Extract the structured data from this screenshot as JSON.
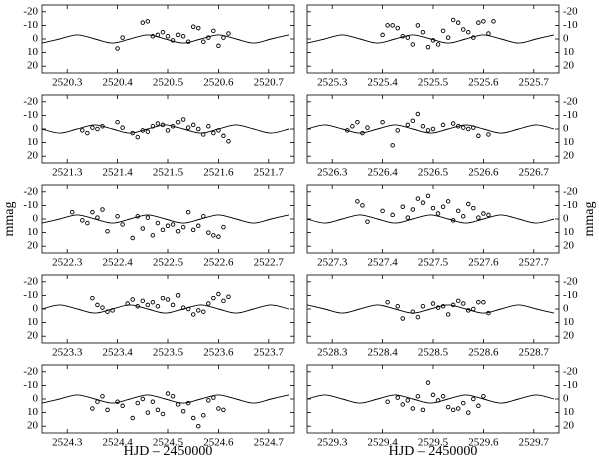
{
  "chart_data": [
    {
      "type": "scatter",
      "xlim": [
        2520.25,
        2520.75
      ],
      "xticks": [
        2520.3,
        2520.4,
        2520.5,
        2520.6,
        2520.7
      ],
      "ylim": [
        25,
        -25
      ],
      "yticks": [
        -20,
        -10,
        0,
        10,
        20
      ],
      "yaxis_side": "left",
      "x": [
        2520.4,
        2520.41,
        2520.45,
        2520.46,
        2520.47,
        2520.48,
        2520.49,
        2520.5,
        2520.51,
        2520.52,
        2520.53,
        2520.54,
        2520.55,
        2520.56,
        2520.57,
        2520.58,
        2520.59,
        2520.6,
        2520.61,
        2520.62
      ],
      "values": [
        7,
        -1,
        -12,
        -13,
        -2,
        -3,
        -5,
        -2,
        1,
        -3,
        -2,
        2,
        -9,
        -8,
        2,
        -1,
        -6,
        5,
        -1,
        -4
      ],
      "curve": {
        "x": [
          2520.25,
          2520.285,
          2520.32,
          2520.355,
          2520.39,
          2520.425,
          2520.46,
          2520.495,
          2520.53,
          2520.565,
          2520.6,
          2520.635,
          2520.67,
          2520.705,
          2520.74
        ],
        "values": [
          3,
          0,
          -3,
          0,
          3,
          0,
          -3,
          0,
          3,
          0,
          -3,
          0,
          3,
          0,
          -3
        ]
      }
    },
    {
      "type": "scatter",
      "xlim": [
        2521.25,
        2521.75
      ],
      "xticks": [
        2521.3,
        2521.4,
        2521.5,
        2521.6,
        2521.7
      ],
      "ylim": [
        25,
        -25
      ],
      "yticks": [
        -20,
        -10,
        0,
        10,
        20
      ],
      "yaxis_side": "left",
      "x": [
        2521.33,
        2521.34,
        2521.35,
        2521.36,
        2521.37,
        2521.4,
        2521.41,
        2521.43,
        2521.44,
        2521.45,
        2521.46,
        2521.47,
        2521.48,
        2521.49,
        2521.5,
        2521.51,
        2521.52,
        2521.53,
        2521.54,
        2521.55,
        2521.56,
        2521.57,
        2521.58,
        2521.59,
        2521.6,
        2521.61,
        2521.62
      ],
      "values": [
        1,
        3,
        -1,
        0,
        -2,
        -5,
        -1,
        3,
        6,
        1,
        2,
        -2,
        -4,
        -3,
        1,
        -2,
        -5,
        -7,
        -1,
        -3,
        0,
        4,
        -2,
        3,
        1,
        5,
        9
      ],
      "curve": {
        "x": [
          2521.25,
          2521.285,
          2521.32,
          2521.355,
          2521.39,
          2521.425,
          2521.46,
          2521.495,
          2521.53,
          2521.565,
          2521.6,
          2521.635,
          2521.67,
          2521.705,
          2521.74
        ],
        "values": [
          0,
          3,
          0,
          -3,
          0,
          3,
          0,
          -3,
          0,
          3,
          0,
          -3,
          0,
          3,
          0
        ]
      }
    },
    {
      "type": "scatter",
      "xlim": [
        2522.25,
        2522.75
      ],
      "xticks": [
        2522.3,
        2522.4,
        2522.5,
        2522.6,
        2522.7
      ],
      "ylim": [
        25,
        -25
      ],
      "yticks": [
        -20,
        -10,
        0,
        10,
        20
      ],
      "yaxis_side": "left",
      "ylabel": "mmag",
      "x": [
        2522.31,
        2522.33,
        2522.34,
        2522.35,
        2522.36,
        2522.37,
        2522.38,
        2522.4,
        2522.41,
        2522.43,
        2522.44,
        2522.45,
        2522.46,
        2522.47,
        2522.48,
        2522.49,
        2522.5,
        2522.51,
        2522.52,
        2522.53,
        2522.54,
        2522.55,
        2522.56,
        2522.57,
        2522.58,
        2522.59,
        2522.6,
        2522.61
      ],
      "values": [
        -5,
        1,
        3,
        -5,
        -1,
        -7,
        9,
        -2,
        4,
        14,
        -2,
        7,
        -1,
        12,
        3,
        8,
        5,
        4,
        9,
        6,
        -5,
        8,
        5,
        -2,
        10,
        12,
        13,
        6
      ],
      "curve": {
        "x": [
          2522.25,
          2522.285,
          2522.32,
          2522.355,
          2522.39,
          2522.425,
          2522.46,
          2522.495,
          2522.53,
          2522.565,
          2522.6,
          2522.635,
          2522.67,
          2522.705,
          2522.74
        ],
        "values": [
          3,
          0,
          -3,
          0,
          3,
          0,
          -3,
          0,
          3,
          0,
          -3,
          0,
          3,
          0,
          -3
        ]
      }
    },
    {
      "type": "scatter",
      "xlim": [
        2523.25,
        2523.75
      ],
      "xticks": [
        2523.3,
        2523.4,
        2523.5,
        2523.6,
        2523.7
      ],
      "ylim": [
        25,
        -25
      ],
      "yticks": [
        -20,
        -10,
        0,
        10,
        20
      ],
      "yaxis_side": "left",
      "x": [
        2523.35,
        2523.36,
        2523.37,
        2523.38,
        2523.39,
        2523.42,
        2523.43,
        2523.44,
        2523.45,
        2523.46,
        2523.47,
        2523.48,
        2523.49,
        2523.5,
        2523.51,
        2523.52,
        2523.53,
        2523.54,
        2523.55,
        2523.56,
        2523.57,
        2523.58,
        2523.59,
        2523.6,
        2523.61,
        2523.62
      ],
      "values": [
        -8,
        -3,
        -1,
        2,
        1,
        -4,
        -7,
        -2,
        -6,
        -3,
        -5,
        -2,
        -8,
        -7,
        -3,
        -10,
        -1,
        0,
        4,
        1,
        2,
        -4,
        -8,
        -11,
        -6,
        -9
      ],
      "curve": {
        "x": [
          2523.25,
          2523.285,
          2523.32,
          2523.355,
          2523.39,
          2523.425,
          2523.46,
          2523.495,
          2523.53,
          2523.565,
          2523.6,
          2523.635,
          2523.67,
          2523.705,
          2523.74
        ],
        "values": [
          0,
          -3,
          0,
          3,
          0,
          -3,
          0,
          3,
          0,
          -3,
          0,
          3,
          0,
          -3,
          0
        ]
      }
    },
    {
      "type": "scatter",
      "xlim": [
        2524.25,
        2524.75
      ],
      "xticks": [
        2524.3,
        2524.4,
        2524.5,
        2524.6,
        2524.7
      ],
      "ylim": [
        25,
        -25
      ],
      "yticks": [
        -20,
        -10,
        0,
        10,
        20
      ],
      "yaxis_side": "left",
      "xlabel": "HJD – 2450000",
      "x": [
        2524.35,
        2524.36,
        2524.37,
        2524.38,
        2524.4,
        2524.41,
        2524.43,
        2524.44,
        2524.45,
        2524.46,
        2524.47,
        2524.48,
        2524.49,
        2524.5,
        2524.51,
        2524.52,
        2524.53,
        2524.54,
        2524.55,
        2524.56,
        2524.57,
        2524.58,
        2524.59,
        2524.6,
        2524.61
      ],
      "values": [
        7,
        2,
        -2,
        8,
        2,
        5,
        14,
        3,
        0,
        10,
        2,
        8,
        11,
        -4,
        -2,
        4,
        9,
        3,
        14,
        20,
        12,
        1,
        -1,
        7,
        8
      ],
      "curve": {
        "x": [
          2524.25,
          2524.285,
          2524.32,
          2524.355,
          2524.39,
          2524.425,
          2524.46,
          2524.495,
          2524.53,
          2524.565,
          2524.6,
          2524.635,
          2524.67,
          2524.705,
          2524.74
        ],
        "values": [
          3,
          0,
          -3,
          0,
          3,
          0,
          -3,
          0,
          3,
          0,
          -3,
          0,
          3,
          0,
          -3
        ]
      }
    },
    {
      "type": "scatter",
      "xlim": [
        2525.25,
        2525.75
      ],
      "xticks": [
        2525.3,
        2525.4,
        2525.5,
        2525.6,
        2525.7
      ],
      "ylim": [
        25,
        -25
      ],
      "yticks": [
        -20,
        -10,
        0,
        10,
        20
      ],
      "yaxis_side": "right",
      "x": [
        2525.4,
        2525.41,
        2525.42,
        2525.43,
        2525.44,
        2525.45,
        2525.46,
        2525.47,
        2525.48,
        2525.49,
        2525.5,
        2525.51,
        2525.52,
        2525.53,
        2525.54,
        2525.55,
        2525.56,
        2525.57,
        2525.58,
        2525.59,
        2525.6,
        2525.61,
        2525.62
      ],
      "values": [
        -3,
        -10,
        -10,
        -8,
        -2,
        -1,
        4,
        -10,
        -5,
        6,
        1,
        4,
        -6,
        -1,
        -14,
        -12,
        -7,
        -5,
        -1,
        -12,
        -13,
        -4,
        -13
      ],
      "curve": {
        "x": [
          2525.25,
          2525.285,
          2525.32,
          2525.355,
          2525.39,
          2525.425,
          2525.46,
          2525.495,
          2525.53,
          2525.565,
          2525.6,
          2525.635,
          2525.67,
          2525.705,
          2525.74
        ],
        "values": [
          3,
          0,
          -3,
          0,
          3,
          0,
          -3,
          0,
          3,
          0,
          -3,
          0,
          3,
          0,
          -3
        ]
      }
    },
    {
      "type": "scatter",
      "xlim": [
        2526.25,
        2526.75
      ],
      "xticks": [
        2526.3,
        2526.4,
        2526.5,
        2526.6,
        2526.7
      ],
      "ylim": [
        25,
        -25
      ],
      "yticks": [
        -20,
        -10,
        0,
        10,
        20
      ],
      "yaxis_side": "right",
      "x": [
        2526.33,
        2526.34,
        2526.35,
        2526.36,
        2526.37,
        2526.4,
        2526.42,
        2526.43,
        2526.45,
        2526.46,
        2526.47,
        2526.48,
        2526.49,
        2526.5,
        2526.52,
        2526.54,
        2526.55,
        2526.56,
        2526.57,
        2526.58,
        2526.59,
        2526.61
      ],
      "values": [
        1,
        -2,
        -5,
        3,
        -1,
        -5,
        12,
        1,
        -3,
        -6,
        -11,
        -2,
        1,
        0,
        -3,
        -4,
        -2,
        -1,
        0,
        -1,
        5,
        4
      ],
      "curve": {
        "x": [
          2526.25,
          2526.285,
          2526.32,
          2526.355,
          2526.39,
          2526.425,
          2526.46,
          2526.495,
          2526.53,
          2526.565,
          2526.6,
          2526.635,
          2526.67,
          2526.705,
          2526.74
        ],
        "values": [
          0,
          -3,
          0,
          3,
          0,
          -3,
          0,
          3,
          0,
          -3,
          0,
          3,
          0,
          -3,
          0
        ]
      }
    },
    {
      "type": "scatter",
      "xlim": [
        2527.25,
        2527.75
      ],
      "xticks": [
        2527.3,
        2527.4,
        2527.5,
        2527.6,
        2527.7
      ],
      "ylim": [
        25,
        -25
      ],
      "yticks": [
        -20,
        -10,
        0,
        10,
        20
      ],
      "yaxis_side": "right",
      "ylabel": "mmag",
      "x": [
        2527.35,
        2527.36,
        2527.37,
        2527.4,
        2527.42,
        2527.44,
        2527.45,
        2527.46,
        2527.47,
        2527.48,
        2527.49,
        2527.5,
        2527.51,
        2527.52,
        2527.53,
        2527.54,
        2527.55,
        2527.56,
        2527.57,
        2527.58,
        2527.59,
        2527.6,
        2527.61
      ],
      "values": [
        -13,
        -10,
        2,
        -6,
        -3,
        -9,
        -1,
        -7,
        -15,
        -12,
        -17,
        -8,
        -4,
        -9,
        -13,
        1,
        -6,
        -2,
        -11,
        -8,
        -1,
        -4,
        -3
      ],
      "curve": {
        "x": [
          2527.25,
          2527.285,
          2527.32,
          2527.355,
          2527.39,
          2527.425,
          2527.46,
          2527.495,
          2527.53,
          2527.565,
          2527.6,
          2527.635,
          2527.67,
          2527.705,
          2527.74
        ],
        "values": [
          0,
          3,
          0,
          -3,
          0,
          3,
          0,
          -3,
          0,
          3,
          0,
          -3,
          0,
          3,
          0
        ]
      }
    },
    {
      "type": "scatter",
      "xlim": [
        2528.25,
        2528.75
      ],
      "xticks": [
        2528.3,
        2528.4,
        2528.5,
        2528.6,
        2528.7
      ],
      "ylim": [
        25,
        -25
      ],
      "yticks": [
        -20,
        -10,
        0,
        10,
        20
      ],
      "yaxis_side": "right",
      "x": [
        2528.41,
        2528.43,
        2528.44,
        2528.46,
        2528.47,
        2528.48,
        2528.5,
        2528.51,
        2528.52,
        2528.53,
        2528.54,
        2528.55,
        2528.56,
        2528.57,
        2528.58,
        2528.59,
        2528.6,
        2528.61
      ],
      "values": [
        -5,
        -2,
        7,
        2,
        6,
        -2,
        -4,
        -1,
        -2,
        4,
        -3,
        -6,
        -4,
        1,
        0,
        -5,
        -5,
        3
      ],
      "curve": {
        "x": [
          2528.25,
          2528.285,
          2528.32,
          2528.355,
          2528.39,
          2528.425,
          2528.46,
          2528.495,
          2528.53,
          2528.565,
          2528.6,
          2528.635,
          2528.67,
          2528.705,
          2528.74
        ],
        "values": [
          -3,
          0,
          3,
          0,
          -3,
          0,
          3,
          0,
          -3,
          0,
          3,
          0,
          -3,
          0,
          3
        ]
      }
    },
    {
      "type": "scatter",
      "xlim": [
        2529.25,
        2529.75
      ],
      "xticks": [
        2529.3,
        2529.4,
        2529.5,
        2529.6,
        2529.7
      ],
      "ylim": [
        25,
        -25
      ],
      "yticks": [
        -20,
        -10,
        0,
        10,
        20
      ],
      "yaxis_side": "right",
      "xlabel": "HJD – 2450000",
      "x": [
        2529.41,
        2529.43,
        2529.44,
        2529.45,
        2529.46,
        2529.47,
        2529.48,
        2529.49,
        2529.5,
        2529.51,
        2529.52,
        2529.53,
        2529.54,
        2529.55,
        2529.56,
        2529.57,
        2529.58,
        2529.59,
        2529.6
      ],
      "values": [
        2,
        -1,
        4,
        1,
        7,
        -2,
        8,
        -12,
        -3,
        1,
        -2,
        6,
        8,
        7,
        3,
        10,
        0,
        5,
        -2
      ],
      "curve": {
        "x": [
          2529.25,
          2529.285,
          2529.32,
          2529.355,
          2529.39,
          2529.425,
          2529.46,
          2529.495,
          2529.53,
          2529.565,
          2529.6,
          2529.635,
          2529.67,
          2529.705,
          2529.74
        ],
        "values": [
          0,
          -3,
          0,
          3,
          0,
          -3,
          0,
          3,
          0,
          -3,
          0,
          3,
          0,
          -3,
          0
        ]
      }
    }
  ]
}
